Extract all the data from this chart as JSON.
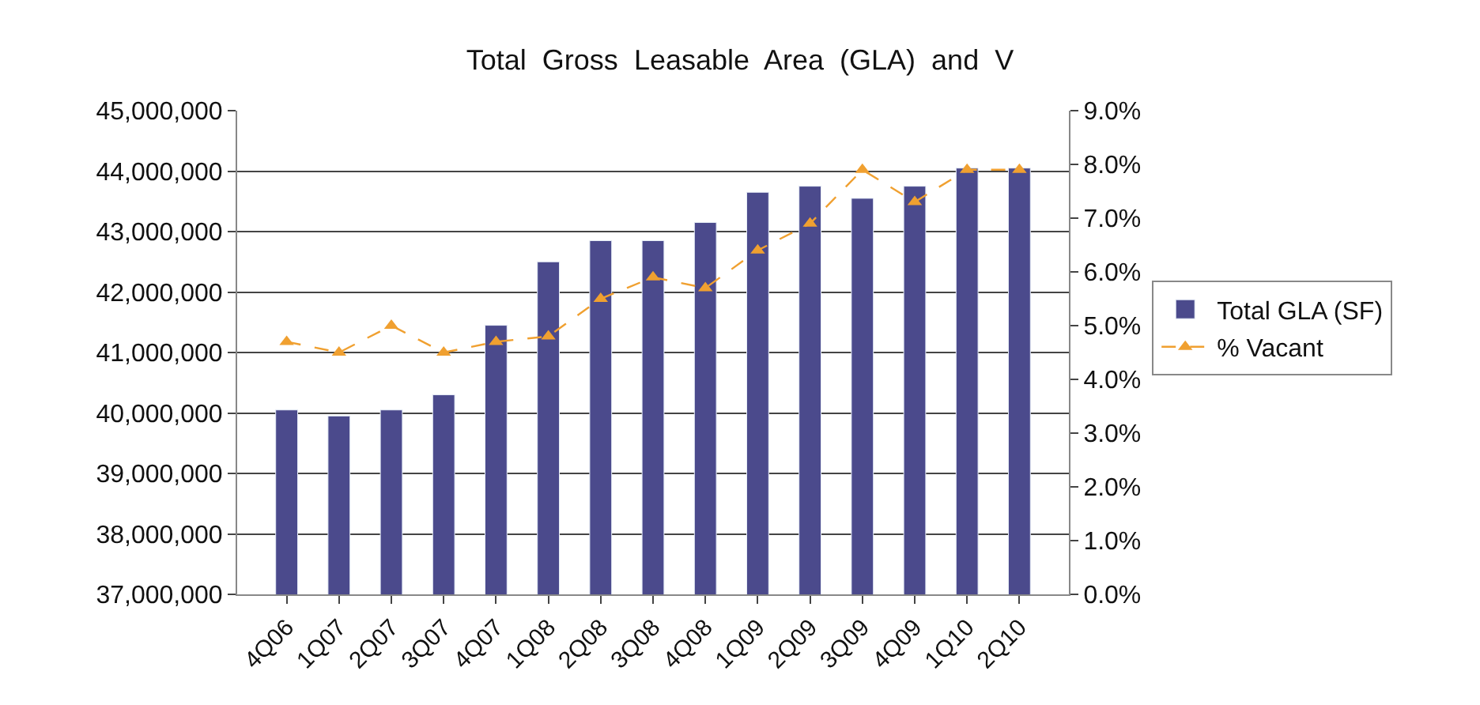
{
  "chart_data": {
    "type": "bar",
    "title": "Total  Gross  Leasable  Area  (GLA)  and  V",
    "categories": [
      "4Q06",
      "1Q07",
      "2Q07",
      "3Q07",
      "4Q07",
      "1Q08",
      "2Q08",
      "3Q08",
      "4Q08",
      "1Q09",
      "2Q09",
      "3Q09",
      "4Q09",
      "1Q10",
      "2Q10"
    ],
    "series": [
      {
        "name": "Total GLA (SF)",
        "color": "#4b4a8c",
        "values": [
          40050000,
          39950000,
          40050000,
          40300000,
          41450000,
          42500000,
          42850000,
          42850000,
          43150000,
          43650000,
          43750000,
          43550000,
          43750000,
          44050000,
          44050000
        ]
      },
      {
        "name": "% Vacant",
        "type": "line",
        "axis": "y2",
        "color": "#f0a030",
        "marker": "triangle",
        "line_style": "dashed",
        "values": [
          4.7,
          4.5,
          5.0,
          4.5,
          4.7,
          4.8,
          5.5,
          5.9,
          5.7,
          6.4,
          6.9,
          7.9,
          7.3,
          7.9,
          7.9
        ]
      }
    ],
    "ylim": [
      37000000,
      45000000
    ],
    "yticks": [
      {
        "value": 37000000,
        "label": "37,000,000"
      },
      {
        "value": 38000000,
        "label": "38,000,000"
      },
      {
        "value": 39000000,
        "label": "39,000,000"
      },
      {
        "value": 40000000,
        "label": "40,000,000"
      },
      {
        "value": 41000000,
        "label": "41,000,000"
      },
      {
        "value": 42000000,
        "label": "42,000,000"
      },
      {
        "value": 43000000,
        "label": "43,000,000"
      },
      {
        "value": 44000000,
        "label": "44,000,000"
      },
      {
        "value": 45000000,
        "label": "45,000,000"
      }
    ],
    "y2lim": [
      0,
      9
    ],
    "y2ticks": [
      {
        "value": 0,
        "label": "0.0%"
      },
      {
        "value": 1,
        "label": "1.0%"
      },
      {
        "value": 2,
        "label": "2.0%"
      },
      {
        "value": 3,
        "label": "3.0%"
      },
      {
        "value": 4,
        "label": "4.0%"
      },
      {
        "value": 5,
        "label": "5.0%"
      },
      {
        "value": 6,
        "label": "6.0%"
      },
      {
        "value": 7,
        "label": "7.0%"
      },
      {
        "value": 8,
        "label": "8.0%"
      },
      {
        "value": 9,
        "label": "9.0%"
      }
    ],
    "grid": "y",
    "legend": "right"
  }
}
